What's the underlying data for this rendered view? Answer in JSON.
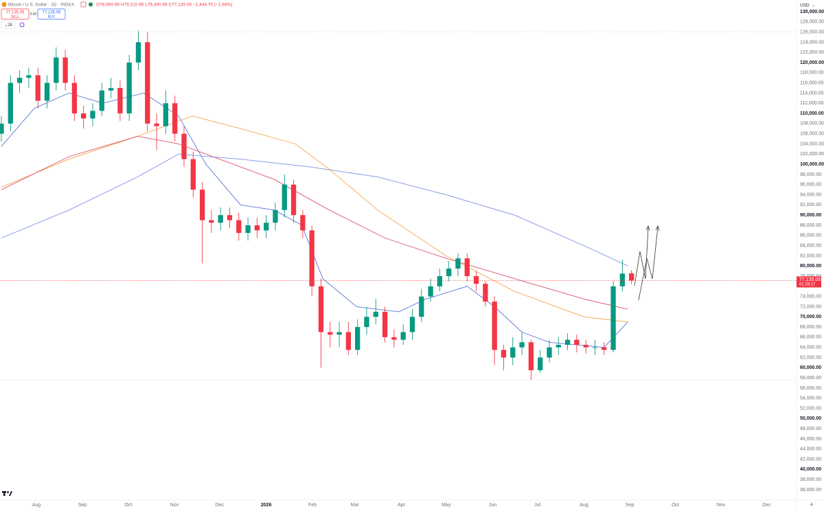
{
  "header": {
    "symbol": "Bitcoin / U.S. Dollar · 1D · INDEX",
    "ohlc": "O78,560.98 H79,210.66 L76,400.66 C77,135.05 −1,444.70 (−1.84%)",
    "sell_price": "77,135.05",
    "sell": "SELL",
    "spread": "0.00",
    "buy_price": "77,135.05",
    "buy": "BUY",
    "indicators": "28",
    "currency": "USD"
  },
  "chart_data": {
    "type": "candlestick",
    "up_color": "#089981",
    "down_color": "#f23645",
    "open": [
      106000,
      108000,
      116000,
      117000,
      117500,
      112500,
      116000,
      121000,
      116000,
      110000,
      109000,
      110500,
      114500,
      115000,
      110000,
      120000,
      124000,
      108000,
      107500,
      112000,
      106000,
      101000,
      95000,
      89000,
      88500,
      90000,
      89000,
      86500,
      88000,
      87000,
      88500,
      91000,
      96000,
      90000,
      87000,
      76000,
      67000,
      66500,
      67000,
      63500,
      68000,
      70000,
      71000,
      66000,
      65500,
      67000,
      70000,
      74000,
      76000,
      78000,
      79500,
      81500,
      78000,
      76500,
      73000,
      63500,
      62000,
      64000,
      65000,
      59500,
      62000,
      64000,
      64500,
      65500,
      64500,
      64000,
      64000,
      63500,
      76000,
      78560.98
    ],
    "high": [
      109500,
      117500,
      118500,
      119000,
      119000,
      117500,
      123000,
      122500,
      117500,
      111500,
      112000,
      116000,
      117000,
      116500,
      121500,
      126300,
      126000,
      110000,
      114500,
      113500,
      107500,
      102500,
      96500,
      91000,
      91500,
      91500,
      90500,
      89500,
      89500,
      90000,
      92500,
      98000,
      97000,
      91000,
      88000,
      77500,
      69000,
      69000,
      69000,
      69500,
      72000,
      73500,
      72000,
      67500,
      68500,
      71500,
      75500,
      77500,
      79500,
      81000,
      82500,
      82500,
      79000,
      77000,
      74000,
      64500,
      66000,
      67000,
      65500,
      63500,
      65500,
      66000,
      66800,
      66500,
      65500,
      65500,
      65000,
      77000,
      81300,
      79210.66
    ],
    "low": [
      104500,
      106500,
      114000,
      115000,
      111000,
      111000,
      114500,
      114500,
      108500,
      107000,
      107500,
      109500,
      113000,
      108500,
      108500,
      118500,
      106500,
      102800,
      106000,
      104500,
      99500,
      93500,
      80500,
      86500,
      87000,
      87500,
      85000,
      85000,
      85500,
      85500,
      87000,
      89500,
      88500,
      85500,
      74000,
      60000,
      64000,
      64000,
      62500,
      62500,
      66500,
      68500,
      65000,
      64000,
      64500,
      65500,
      69000,
      73000,
      75000,
      77000,
      78000,
      77000,
      75000,
      72000,
      60500,
      59500,
      60500,
      62500,
      57600,
      59000,
      61000,
      62500,
      63500,
      63000,
      62800,
      62500,
      62500,
      63000,
      75000,
      76400.66
    ],
    "close": [
      108000,
      116000,
      117000,
      117500,
      112500,
      116000,
      121000,
      116000,
      110000,
      109000,
      110500,
      114500,
      115000,
      110000,
      120000,
      124000,
      108000,
      107500,
      112000,
      106000,
      101000,
      95000,
      89000,
      88500,
      90000,
      89000,
      86500,
      88000,
      87000,
      88500,
      91000,
      96000,
      90000,
      87000,
      76000,
      67000,
      66500,
      67000,
      63500,
      68000,
      70000,
      71000,
      66000,
      65500,
      67000,
      70000,
      74000,
      76000,
      78000,
      79500,
      81500,
      78000,
      76500,
      73000,
      63500,
      62000,
      64000,
      65000,
      59500,
      62000,
      64000,
      64500,
      65500,
      64500,
      64000,
      64000,
      63500,
      76000,
      78500,
      77135.05
    ],
    "price_label": "77,135.05",
    "countdown": "01:28:17",
    "lines": [
      {
        "color": "#5b74d8",
        "x": [
          0,
          3.6,
          7.4,
          11.1,
          15.6,
          19.4,
          22.4,
          26.2,
          29.9,
          32.9,
          35.2,
          38.9,
          43.5,
          46.5,
          51,
          54,
          57,
          60,
          66,
          68.6
        ],
        "values": [
          103500,
          111000,
          114000,
          112000,
          114000,
          109500,
          100000,
          92000,
          91000,
          88000,
          77500,
          72000,
          71000,
          73500,
          76000,
          72000,
          67000,
          65000,
          64000,
          69000
        ]
      },
      {
        "color": "#f5a54a",
        "x": [
          0,
          7.4,
          14.9,
          20.9,
          26.2,
          32.2,
          35.9,
          41.2,
          48.7,
          56.2,
          63.8,
          68.6
        ],
        "values": [
          95500,
          101000,
          105500,
          109500,
          107000,
          104000,
          99000,
          91000,
          82000,
          75000,
          70000,
          69000
        ]
      },
      {
        "color": "#e0506a",
        "x": [
          0,
          7.4,
          14.9,
          19.4,
          22.4,
          29.9,
          35.9,
          42,
          48.7,
          56.2,
          63.8,
          68.6
        ],
        "values": [
          95000,
          101500,
          105500,
          104000,
          102000,
          97000,
          91000,
          85500,
          81500,
          77500,
          73500,
          71500
        ]
      },
      {
        "color": "#7b8fe0",
        "x": [
          0,
          7.4,
          14.9,
          19.4,
          26.2,
          33.7,
          41.2,
          48.7,
          56.2,
          63.8,
          68.6
        ],
        "values": [
          85500,
          91000,
          97500,
          102000,
          101000,
          99500,
          97500,
          94000,
          90000,
          84000,
          80000
        ]
      }
    ],
    "xlim": [
      -0.15,
      87.07
    ],
    "xticks": [
      {
        "value": 3.83,
        "label": "Aug"
      },
      {
        "value": 8.87,
        "label": "Sep"
      },
      {
        "value": 13.9,
        "label": "Oct"
      },
      {
        "value": 18.95,
        "label": "Nov"
      },
      {
        "value": 23.9,
        "label": "Dec"
      },
      {
        "value": 29.0,
        "label": "2026"
      },
      {
        "value": 34.06,
        "label": "Feb"
      },
      {
        "value": 38.7,
        "label": "Mar"
      },
      {
        "value": 43.8,
        "label": "Apr"
      },
      {
        "value": 48.7,
        "label": "May"
      },
      {
        "value": 53.8,
        "label": "Jun"
      },
      {
        "value": 58.7,
        "label": "Jul"
      },
      {
        "value": 63.8,
        "label": "Aug"
      },
      {
        "value": 68.8,
        "label": "Sep"
      },
      {
        "value": 73.8,
        "label": "Oct"
      },
      {
        "value": 78.8,
        "label": "Nov"
      },
      {
        "value": 83.8,
        "label": "Dec"
      }
    ],
    "ylim": [
      36000,
      132000
    ],
    "yticks": [
      {
        "value": 130000,
        "label": "130,000.00"
      },
      {
        "value": 128000,
        "label": "128,000.00"
      },
      {
        "value": 126000,
        "label": "126,000.00"
      },
      {
        "value": 124000,
        "label": "124,000.00"
      },
      {
        "value": 122000,
        "label": "122,000.00"
      },
      {
        "value": 120000,
        "label": "120,000.00"
      },
      {
        "value": 118000,
        "label": "118,000.00"
      },
      {
        "value": 116000,
        "label": "116,000.00"
      },
      {
        "value": 114000,
        "label": "114,000.00"
      },
      {
        "value": 112000,
        "label": "112,000.00"
      },
      {
        "value": 110000,
        "label": "110,000.00"
      },
      {
        "value": 108000,
        "label": "108,000.00"
      },
      {
        "value": 106000,
        "label": "106,000.00"
      },
      {
        "value": 104000,
        "label": "104,000.00"
      },
      {
        "value": 102000,
        "label": "102,000.00"
      },
      {
        "value": 100000,
        "label": "100,000.00"
      },
      {
        "value": 98000,
        "label": "98,000.00"
      },
      {
        "value": 96000,
        "label": "96,000.00"
      },
      {
        "value": 94000,
        "label": "94,000.00"
      },
      {
        "value": 92000,
        "label": "92,000.00"
      },
      {
        "value": 90000,
        "label": "90,000.00"
      },
      {
        "value": 88000,
        "label": "88,000.00"
      },
      {
        "value": 86000,
        "label": "86,000.00"
      },
      {
        "value": 84000,
        "label": "84,000.00"
      },
      {
        "value": 82000,
        "label": "82,000.00"
      },
      {
        "value": 80000,
        "label": "80,000.00"
      },
      {
        "value": 78000,
        "label": "78,000.00"
      },
      {
        "value": 76000,
        "label": "76,000.00"
      },
      {
        "value": 74000,
        "label": "74,000.00"
      },
      {
        "value": 72000,
        "label": "72,000.00"
      },
      {
        "value": 70000,
        "label": "70,000.00"
      },
      {
        "value": 68000,
        "label": "68,000.00"
      },
      {
        "value": 66000,
        "label": "66,000.00"
      },
      {
        "value": 64000,
        "label": "64,000.00"
      },
      {
        "value": 62000,
        "label": "62,000.00"
      },
      {
        "value": 60000,
        "label": "60,000.00"
      },
      {
        "value": 58000,
        "label": "58,000.00"
      },
      {
        "value": 56000,
        "label": "56,000.00"
      },
      {
        "value": 54000,
        "label": "54,000.00"
      },
      {
        "value": 52000,
        "label": "52,000.00"
      },
      {
        "value": 50000,
        "label": "50,000.00"
      },
      {
        "value": 48000,
        "label": "48,000.00"
      },
      {
        "value": 46000,
        "label": "46,000.00"
      },
      {
        "value": 44000,
        "label": "44,000.00"
      },
      {
        "value": 42000,
        "label": "42,000.00"
      },
      {
        "value": 40000,
        "label": "40,000.00"
      },
      {
        "value": 38000,
        "label": "38,000.00"
      },
      {
        "value": 36000,
        "label": "36,000.00"
      }
    ],
    "grid": false
  }
}
